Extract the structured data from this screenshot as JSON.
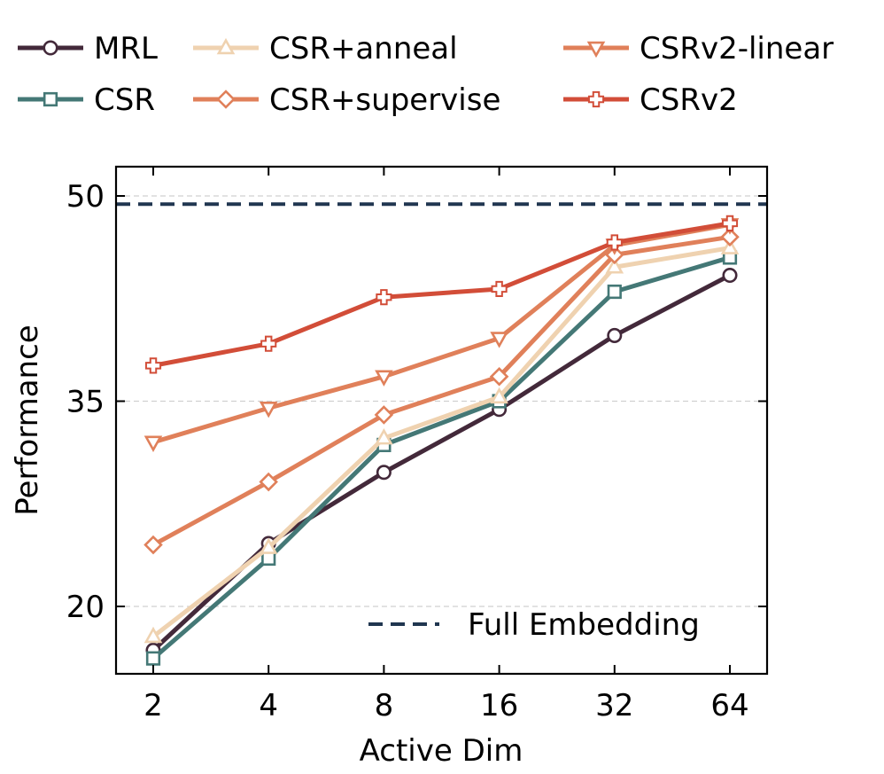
{
  "chart_data": {
    "type": "line",
    "title": "",
    "xlabel": "Active Dim",
    "ylabel": "Performance",
    "categories": [
      "2",
      "4",
      "8",
      "16",
      "32",
      "64"
    ],
    "yticks": [
      20,
      35,
      50
    ],
    "ylim": [
      15,
      52
    ],
    "grid": "horizontal-dashed",
    "legend_placement": "top",
    "series": [
      {
        "name": "MRL",
        "color": "#43293a",
        "marker": "circle",
        "values": [
          16.8,
          24.6,
          29.8,
          34.4,
          39.8,
          44.2
        ]
      },
      {
        "name": "CSR",
        "color": "#447876",
        "marker": "square",
        "values": [
          16.2,
          23.5,
          31.8,
          35.0,
          43.0,
          45.5
        ]
      },
      {
        "name": "CSR+anneal",
        "color": "#efd2b0",
        "marker": "triangle-up",
        "values": [
          17.8,
          24.3,
          32.3,
          35.3,
          44.8,
          46.2
        ]
      },
      {
        "name": "CSR+supervise",
        "color": "#e0805a",
        "marker": "diamond",
        "values": [
          24.5,
          29.1,
          34.0,
          36.8,
          45.7,
          47.0
        ]
      },
      {
        "name": "CSRv2-linear",
        "color": "#e0805a",
        "marker": "triangle-down",
        "values": [
          32.0,
          34.5,
          36.8,
          39.6,
          46.4,
          47.9
        ]
      },
      {
        "name": "CSRv2",
        "color": "#d24d38",
        "marker": "plus",
        "values": [
          37.6,
          39.2,
          42.6,
          43.2,
          46.6,
          48.0
        ]
      }
    ],
    "reference_line": {
      "name": "Full Embedding",
      "value": 49.4,
      "color": "#203650",
      "style": "dashed"
    }
  }
}
